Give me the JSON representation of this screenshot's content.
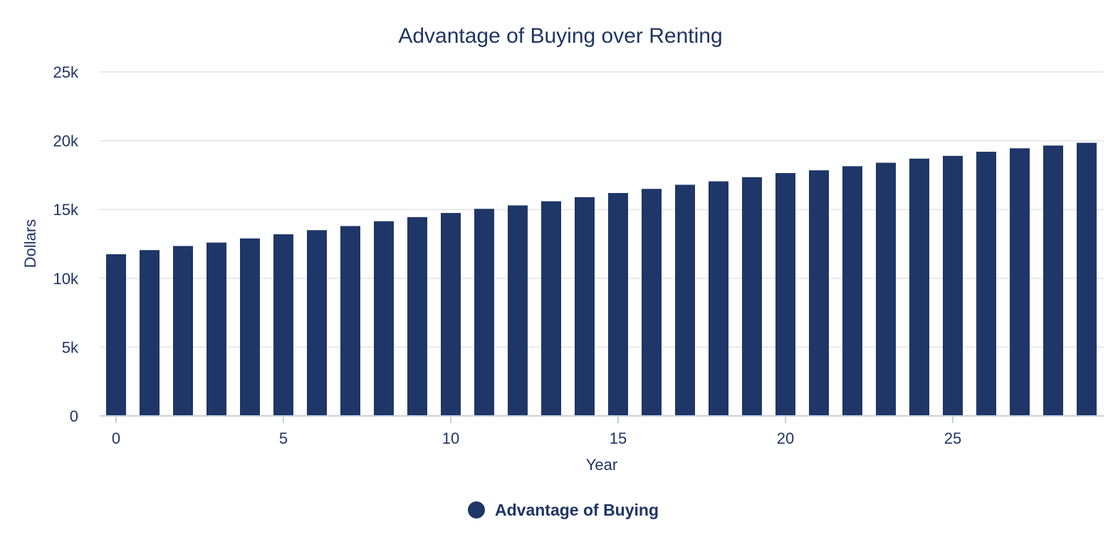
{
  "chart_data": {
    "type": "bar",
    "title": "Advantage of Buying over Renting",
    "xlabel": "Year",
    "ylabel": "Dollars",
    "ylim": [
      0,
      25000
    ],
    "yticks": [
      0,
      5000,
      10000,
      15000,
      20000,
      25000
    ],
    "ytick_labels": [
      "0",
      "5k",
      "10k",
      "15k",
      "20k",
      "25k"
    ],
    "xticks": [
      0,
      5,
      10,
      15,
      20,
      25
    ],
    "xtick_labels": [
      "0",
      "5",
      "10",
      "15",
      "20",
      "25"
    ],
    "grid": true,
    "legend_position": "bottom-center",
    "colors": {
      "bar": "#1f3668",
      "text": "#1f3564"
    },
    "series": [
      {
        "name": "Advantage of Buying",
        "x": [
          0,
          1,
          2,
          3,
          4,
          5,
          6,
          7,
          8,
          9,
          10,
          11,
          12,
          13,
          14,
          15,
          16,
          17,
          18,
          19,
          20,
          21,
          22,
          23,
          24,
          25,
          26,
          27,
          28,
          29
        ],
        "values": [
          11750,
          12050,
          12350,
          12600,
          12900,
          13200,
          13500,
          13800,
          14150,
          14450,
          14750,
          15050,
          15300,
          15600,
          15900,
          16200,
          16500,
          16800,
          17050,
          17350,
          17650,
          17850,
          18150,
          18400,
          18700,
          18900,
          19200,
          19450,
          19650,
          19850
        ]
      }
    ]
  }
}
